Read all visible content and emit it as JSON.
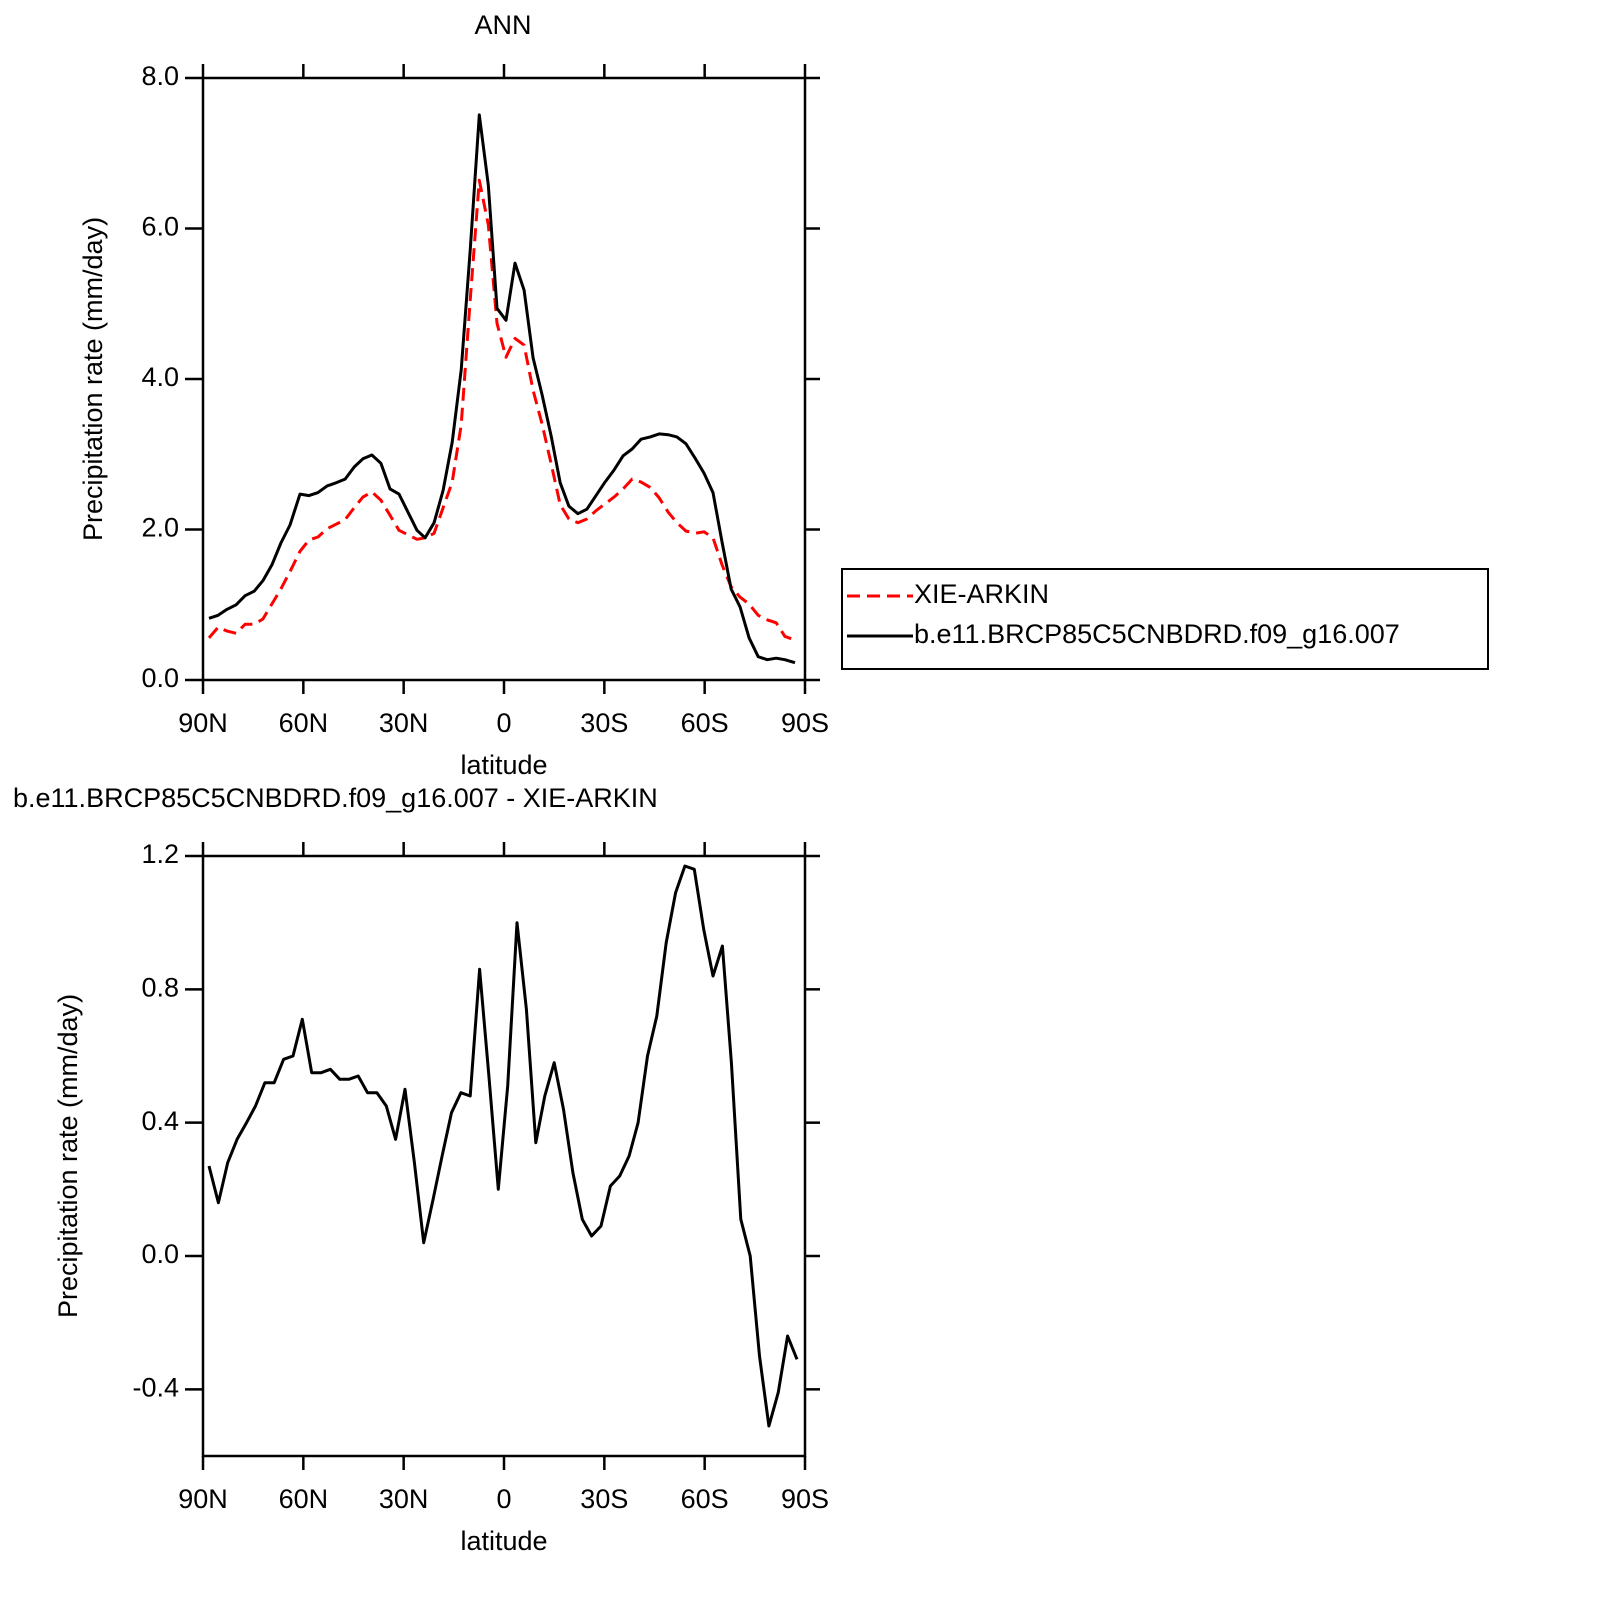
{
  "chart_data": [
    {
      "type": "line",
      "title": "ANN",
      "xlabel": "latitude",
      "ylabel": "Precipitation rate (mm/day)",
      "x": [
        88.2,
        85.5,
        82.8,
        80.1,
        77.4,
        74.7,
        72.1,
        69.4,
        66.7,
        64.0,
        61.0,
        58.3,
        55.6,
        52.9,
        50.2,
        47.5,
        44.8,
        42.2,
        39.5,
        36.8,
        34.1,
        31.4,
        28.7,
        26.0,
        23.6,
        20.9,
        18.2,
        15.5,
        12.8,
        10.1,
        7.4,
        4.7,
        2.1,
        -0.6,
        -3.3,
        -6.0,
        -8.7,
        -11.4,
        -14.1,
        -16.8,
        -19.4,
        -22.1,
        -24.8,
        -27.5,
        -30.2,
        -32.9,
        -35.6,
        -38.3,
        -41.0,
        -43.7,
        -46.4,
        -49.1,
        -51.7,
        -54.4,
        -57.1,
        -59.8,
        -62.5,
        -65.2,
        -67.9,
        -70.6,
        -73.3,
        -76.0,
        -78.7,
        -81.4,
        -84.0,
        -87.0
      ],
      "series": [
        {
          "name": "XIE-ARKIN",
          "color": "#ff0000",
          "dash": true,
          "values": [
            0.56,
            0.7,
            0.65,
            0.62,
            0.74,
            0.74,
            0.81,
            1.01,
            1.21,
            1.44,
            1.71,
            1.86,
            1.9,
            2.01,
            2.07,
            2.13,
            2.29,
            2.43,
            2.5,
            2.39,
            2.19,
            1.99,
            1.93,
            1.87,
            1.89,
            1.95,
            2.29,
            2.63,
            3.39,
            5.05,
            6.64,
            6.05,
            4.74,
            4.29,
            4.54,
            4.45,
            3.85,
            3.4,
            2.87,
            2.33,
            2.14,
            2.09,
            2.14,
            2.25,
            2.34,
            2.43,
            2.54,
            2.67,
            2.63,
            2.56,
            2.42,
            2.23,
            2.09,
            1.98,
            1.95,
            1.97,
            1.89,
            1.53,
            1.24,
            1.1,
            1.01,
            0.86,
            0.8,
            0.76,
            0.58,
            0.53
          ]
        },
        {
          "name": "b.e11.BRCP85C5CNBDRD.f09_g16.007",
          "color": "#000000",
          "dash": false,
          "values": [
            0.82,
            0.86,
            0.94,
            1.0,
            1.12,
            1.18,
            1.32,
            1.53,
            1.82,
            2.06,
            2.47,
            2.45,
            2.49,
            2.58,
            2.62,
            2.67,
            2.83,
            2.94,
            2.99,
            2.88,
            2.54,
            2.47,
            2.23,
            1.99,
            1.89,
            2.09,
            2.52,
            3.16,
            4.12,
            5.71,
            7.51,
            6.58,
            4.94,
            4.78,
            5.54,
            5.18,
            4.28,
            3.79,
            3.24,
            2.62,
            2.31,
            2.21,
            2.27,
            2.45,
            2.63,
            2.79,
            2.98,
            3.07,
            3.2,
            3.23,
            3.27,
            3.26,
            3.23,
            3.14,
            2.95,
            2.75,
            2.49,
            1.83,
            1.21,
            0.97,
            0.56,
            0.31,
            0.27,
            0.29,
            0.27,
            0.23
          ]
        }
      ],
      "xlim": [
        90,
        -90
      ],
      "xticks": [
        {
          "value": 90,
          "label": "90N"
        },
        {
          "value": 60,
          "label": "60N"
        },
        {
          "value": 30,
          "label": "30N"
        },
        0,
        {
          "value": -30,
          "label": "30S"
        },
        {
          "value": -60,
          "label": "60S"
        },
        {
          "value": -90,
          "label": "90S"
        }
      ],
      "ylim": [
        0,
        8
      ],
      "yticks": [
        {
          "value": 0,
          "label": "0.0"
        },
        {
          "value": 2,
          "label": "2.0"
        },
        {
          "value": 4,
          "label": "4.0"
        },
        {
          "value": 6,
          "label": "6.0"
        },
        {
          "value": 8,
          "label": "8.0"
        }
      ],
      "grid": false,
      "legend": "right"
    },
    {
      "type": "line",
      "title": "b.e11.BRCP85C5CNBDRD.f09_g16.007 - XIE-ARKIN",
      "xlabel": "latitude",
      "ylabel": "Precipitation rate (mm/day)",
      "x": [
        88.2,
        85.4,
        82.6,
        79.8,
        77.0,
        74.3,
        71.5,
        68.7,
        65.9,
        63.1,
        60.3,
        57.5,
        54.7,
        51.9,
        49.1,
        46.4,
        43.6,
        40.8,
        38.0,
        35.2,
        32.4,
        29.6,
        26.8,
        24.0,
        21.2,
        18.5,
        15.7,
        12.9,
        10.1,
        7.3,
        4.5,
        1.7,
        -1.1,
        -3.9,
        -6.7,
        -9.5,
        -12.2,
        -15.0,
        -17.8,
        -20.6,
        -23.4,
        -26.2,
        -29.0,
        -31.8,
        -34.6,
        -37.4,
        -40.1,
        -42.9,
        -45.7,
        -48.5,
        -51.3,
        -54.1,
        -56.9,
        -59.7,
        -62.5,
        -65.3,
        -68.0,
        -70.8,
        -73.6,
        -76.4,
        -79.2,
        -82.0,
        -84.8,
        -87.6
      ],
      "values": [
        0.27,
        0.16,
        0.28,
        0.35,
        0.4,
        0.45,
        0.52,
        0.52,
        0.59,
        0.6,
        0.71,
        0.55,
        0.55,
        0.56,
        0.53,
        0.53,
        0.54,
        0.49,
        0.49,
        0.45,
        0.35,
        0.5,
        0.28,
        0.04,
        0.17,
        0.3,
        0.43,
        0.49,
        0.48,
        0.86,
        0.54,
        0.2,
        0.51,
        1.0,
        0.74,
        0.34,
        0.48,
        0.58,
        0.44,
        0.25,
        0.11,
        0.06,
        0.09,
        0.21,
        0.24,
        0.3,
        0.4,
        0.6,
        0.72,
        0.94,
        1.09,
        1.17,
        1.16,
        0.98,
        0.84,
        0.93,
        0.58,
        0.11,
        0.0,
        -0.3,
        -0.51,
        -0.41,
        -0.24,
        -0.31
      ],
      "color": "#000000",
      "xlim": [
        90,
        -90
      ],
      "xticks": [
        {
          "value": 90,
          "label": "90N"
        },
        {
          "value": 60,
          "label": "60N"
        },
        {
          "value": 30,
          "label": "30N"
        },
        0,
        {
          "value": -30,
          "label": "30S"
        },
        {
          "value": -60,
          "label": "60S"
        },
        {
          "value": -90,
          "label": "90S"
        }
      ],
      "ylim": [
        -0.6,
        1.2
      ],
      "yticks": [
        -0.4,
        {
          "value": 0,
          "label": "0.0"
        },
        0.4,
        0.8,
        1.2
      ],
      "grid": false
    }
  ]
}
